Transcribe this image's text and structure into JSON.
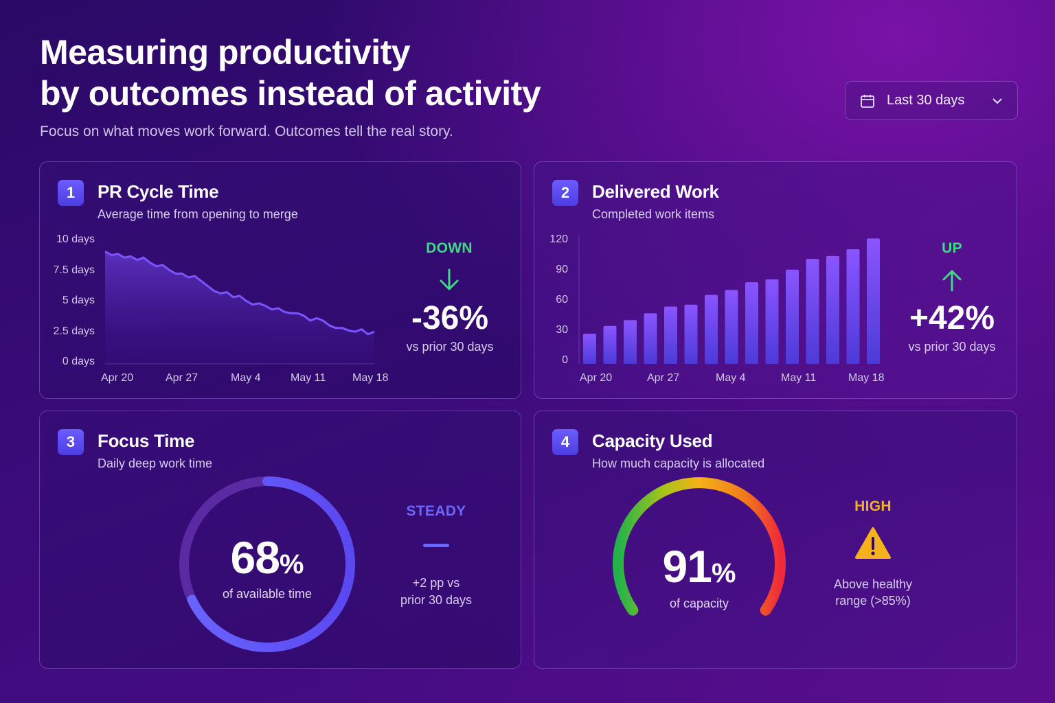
{
  "header": {
    "title_line1": "Measuring productivity",
    "title_line2": "by outcomes instead of activity",
    "subtitle": "Focus on what moves work forward. Outcomes tell the real story."
  },
  "date_filter": {
    "label": "Last 30 days",
    "icon": "calendar-icon"
  },
  "colors": {
    "green": "#3ddc84",
    "purple_accent": "#6a5cff",
    "steady": "#6b67ff",
    "warning": "#f5b21a"
  },
  "cards": {
    "pr_cycle": {
      "number": "1",
      "title": "PR Cycle Time",
      "subtitle": "Average time from opening to merge",
      "trend_word": "DOWN",
      "trend_value": "-36%",
      "trend_note": "vs prior 30 days"
    },
    "delivered": {
      "number": "2",
      "title": "Delivered Work",
      "subtitle": "Completed work items",
      "trend_word": "UP",
      "trend_value": "+42%",
      "trend_note": "vs prior 30 days"
    },
    "focus": {
      "number": "3",
      "title": "Focus Time",
      "subtitle": "Daily deep work time",
      "value": "68",
      "unit": "%",
      "value_note": "of available time",
      "trend_word": "STEADY",
      "trend_note_line1": "+2 pp vs",
      "trend_note_line2": "prior 30 days"
    },
    "capacity": {
      "number": "4",
      "title": "Capacity Used",
      "subtitle": "How much capacity is allocated",
      "value": "91",
      "unit": "%",
      "value_note": "of capacity",
      "trend_word": "HIGH",
      "trend_note_line1": "Above healthy",
      "trend_note_line2": "range (>85%)"
    }
  },
  "chart_data": [
    {
      "type": "area",
      "y_ticks": [
        "10 days",
        "7.5 days",
        "5 days",
        "2.5 days",
        "0 days"
      ],
      "ylim": [
        0,
        10
      ],
      "x_ticks": [
        "Apr 20",
        "Apr 27",
        "May 4",
        "May 11",
        "May 18"
      ],
      "values": [
        9.1,
        8.8,
        8.9,
        8.6,
        8.7,
        8.4,
        8.6,
        8.2,
        7.9,
        8.0,
        7.6,
        7.3,
        7.3,
        7.0,
        7.1,
        6.7,
        6.3,
        5.9,
        5.7,
        5.8,
        5.4,
        5.5,
        5.1,
        4.8,
        4.9,
        4.7,
        4.4,
        4.5,
        4.2,
        4.1,
        4.1,
        3.9,
        3.5,
        3.7,
        3.5,
        3.1,
        2.9,
        2.9,
        2.7,
        2.6,
        2.8,
        2.4,
        2.6
      ]
    },
    {
      "type": "bar",
      "y_ticks": [
        "120",
        "90",
        "60",
        "30",
        "0"
      ],
      "ylim": [
        0,
        130
      ],
      "x_ticks": [
        "Apr 20",
        "Apr 27",
        "May 4",
        "May 11",
        "May 18"
      ],
      "values": [
        31,
        39,
        45,
        52,
        59,
        61,
        71,
        76,
        84,
        87,
        97,
        108,
        111,
        118,
        129
      ]
    },
    {
      "type": "donut",
      "value": 68
    },
    {
      "type": "gauge",
      "value": 91
    }
  ]
}
